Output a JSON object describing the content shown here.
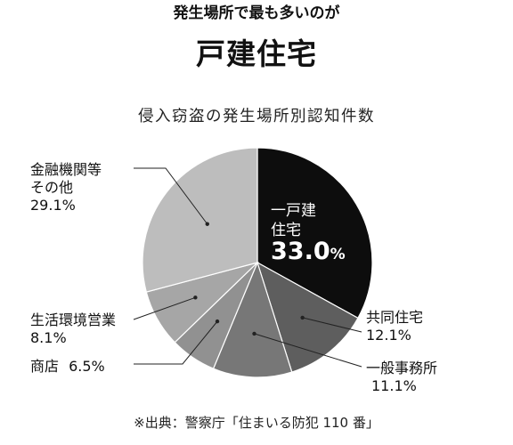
{
  "header": {
    "lead": "発生場所で最も多いのが",
    "headline": "戸建住宅"
  },
  "footer": {
    "source": "※出典：警察庁「住まいる防犯 110 番」"
  },
  "chart_data": {
    "type": "pie",
    "title": "侵入窃盗の発生場所別認知件数",
    "start_angle": "12 o'clock, clockwise",
    "slices": [
      {
        "label_lines": [
          "一戸建",
          "住宅"
        ],
        "value_label": "33.0",
        "unit": "%",
        "value": 33.0,
        "color": "#0d0d0d"
      },
      {
        "label_lines": [
          "共同住宅"
        ],
        "value_label": "12.1%",
        "value": 12.1,
        "color": "#5e5e5e"
      },
      {
        "label_lines": [
          "一般事務所"
        ],
        "value_label": "11.1%",
        "value": 11.1,
        "color": "#777777"
      },
      {
        "label_lines": [
          "商店"
        ],
        "value_label": "6.5%",
        "value": 6.5,
        "color": "#919191"
      },
      {
        "label_lines": [
          "生活環境営業"
        ],
        "value_label": "8.1%",
        "value": 8.1,
        "color": "#a6a6a6"
      },
      {
        "label_lines": [
          "金融機関等",
          "その他"
        ],
        "value_label": "29.1%",
        "value": 29.1,
        "color": "#bdbdbd"
      }
    ]
  }
}
